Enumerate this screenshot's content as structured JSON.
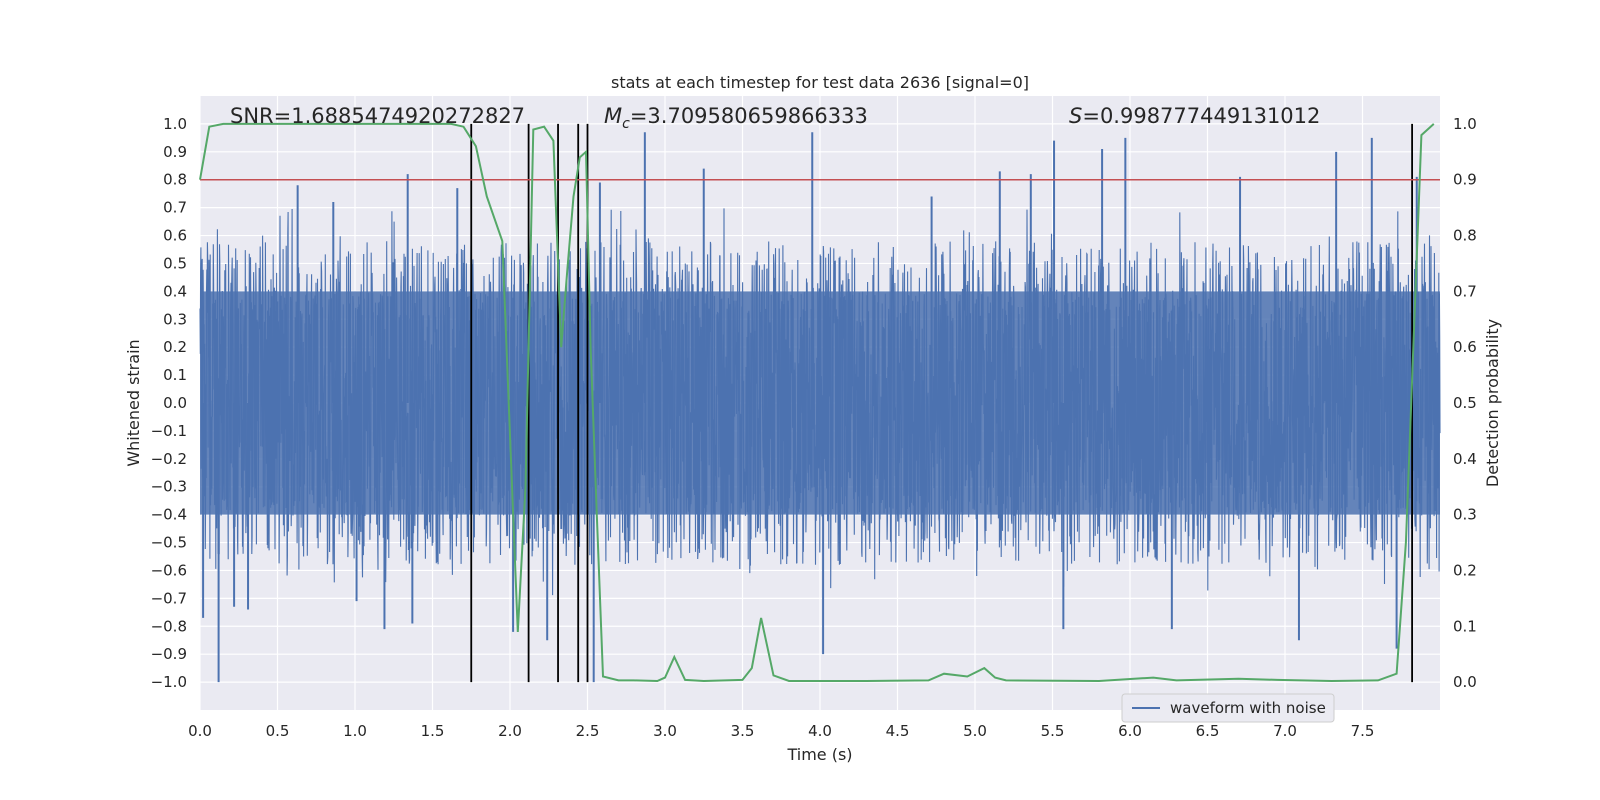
{
  "chart_data": {
    "type": "line",
    "title": "stats at each timestep for test data 2636 [signal=0]",
    "xlabel": "Time (s)",
    "ylabel": "Whitened strain",
    "y2label": "Detection probability",
    "xlim": [
      0,
      8
    ],
    "ylim": [
      -1.1,
      1.1
    ],
    "y2lim": [
      -0.05,
      1.05
    ],
    "xticks": [
      0.0,
      0.5,
      1.0,
      1.5,
      2.0,
      2.5,
      3.0,
      3.5,
      4.0,
      4.5,
      5.0,
      5.5,
      6.0,
      6.5,
      7.0,
      7.5
    ],
    "yticks": [
      -1.0,
      -0.9,
      -0.8,
      -0.7,
      -0.6,
      -0.5,
      -0.4,
      -0.3,
      -0.2,
      -0.1,
      0.0,
      0.1,
      0.2,
      0.3,
      0.4,
      0.5,
      0.6,
      0.7,
      0.8,
      0.9,
      1.0
    ],
    "y2ticks": [
      0.0,
      0.1,
      0.2,
      0.3,
      0.4,
      0.5,
      0.6,
      0.7,
      0.8,
      0.9,
      1.0
    ],
    "grid": true,
    "legend_position": "bottom-right",
    "annotations": {
      "snr": "SNR=1.6885474920272827",
      "mc": "=3.709580659866333",
      "s": "=0.998777449131012"
    },
    "series": [
      {
        "name": "waveform with noise",
        "axis": "left",
        "color": "#4c72b0",
        "note": "dense noise signal, bulk amplitude about ±0.4 with spikes to ±1.0",
        "spikes": [
          {
            "x": 0.02,
            "y": -0.77
          },
          {
            "x": 0.12,
            "y": -1.0
          },
          {
            "x": 0.22,
            "y": -0.73
          },
          {
            "x": 0.31,
            "y": -0.74
          },
          {
            "x": 0.63,
            "y": 0.78
          },
          {
            "x": 0.86,
            "y": 0.72
          },
          {
            "x": 1.01,
            "y": -0.71
          },
          {
            "x": 1.19,
            "y": -0.81
          },
          {
            "x": 1.34,
            "y": 0.82
          },
          {
            "x": 1.37,
            "y": -0.79
          },
          {
            "x": 1.66,
            "y": 0.77
          },
          {
            "x": 2.02,
            "y": -0.82
          },
          {
            "x": 2.24,
            "y": -0.85
          },
          {
            "x": 2.54,
            "y": -1.0
          },
          {
            "x": 2.58,
            "y": 0.79
          },
          {
            "x": 2.87,
            "y": 0.97
          },
          {
            "x": 3.25,
            "y": 0.84
          },
          {
            "x": 3.95,
            "y": 0.97
          },
          {
            "x": 4.02,
            "y": -0.9
          },
          {
            "x": 4.72,
            "y": 0.74
          },
          {
            "x": 5.16,
            "y": 0.83
          },
          {
            "x": 5.36,
            "y": 0.82
          },
          {
            "x": 5.51,
            "y": 0.94
          },
          {
            "x": 5.57,
            "y": -0.81
          },
          {
            "x": 5.82,
            "y": 0.91
          },
          {
            "x": 5.97,
            "y": 0.95
          },
          {
            "x": 6.27,
            "y": -0.81
          },
          {
            "x": 6.71,
            "y": 0.81
          },
          {
            "x": 7.09,
            "y": -0.85
          },
          {
            "x": 7.33,
            "y": 0.9
          },
          {
            "x": 7.56,
            "y": 0.95
          },
          {
            "x": 7.72,
            "y": -0.88
          },
          {
            "x": 7.85,
            "y": 0.81
          }
        ]
      },
      {
        "name": "",
        "axis": "right",
        "color": "#55a868",
        "x": [
          0.0,
          0.06,
          0.15,
          0.3,
          0.5,
          0.8,
          1.2,
          1.5,
          1.62,
          1.7,
          1.78,
          1.85,
          1.95,
          2.05,
          2.1,
          2.15,
          2.22,
          2.28,
          2.33,
          2.37,
          2.41,
          2.45,
          2.49,
          2.52,
          2.56,
          2.6,
          2.7,
          2.8,
          2.95,
          3.0,
          3.06,
          3.13,
          3.25,
          3.5,
          3.56,
          3.62,
          3.7,
          3.8,
          4.3,
          4.7,
          4.8,
          4.95,
          5.06,
          5.13,
          5.2,
          5.8,
          6.15,
          6.3,
          6.7,
          6.95,
          7.3,
          7.6,
          7.72,
          7.78,
          7.88,
          7.96
        ],
        "y": [
          0.9,
          0.995,
          1.0,
          1.0,
          1.0,
          1.0,
          1.0,
          1.0,
          1.0,
          0.995,
          0.96,
          0.87,
          0.79,
          0.09,
          0.35,
          0.99,
          0.995,
          0.97,
          0.6,
          0.74,
          0.87,
          0.94,
          0.95,
          0.6,
          0.3,
          0.01,
          0.003,
          0.003,
          0.002,
          0.008,
          0.045,
          0.004,
          0.002,
          0.004,
          0.025,
          0.115,
          0.012,
          0.002,
          0.002,
          0.003,
          0.015,
          0.01,
          0.025,
          0.008,
          0.003,
          0.002,
          0.008,
          0.003,
          0.006,
          0.004,
          0.002,
          0.003,
          0.015,
          0.25,
          0.98,
          1.0
        ]
      },
      {
        "name": "",
        "axis": "right",
        "color": "#c44e52",
        "type": "hline",
        "y": 0.9
      }
    ],
    "vlines": {
      "color": "#000000",
      "x": [
        1.75,
        2.12,
        2.31,
        2.44,
        2.5,
        7.82
      ],
      "ylim": [
        -1.0,
        1.0
      ]
    }
  }
}
